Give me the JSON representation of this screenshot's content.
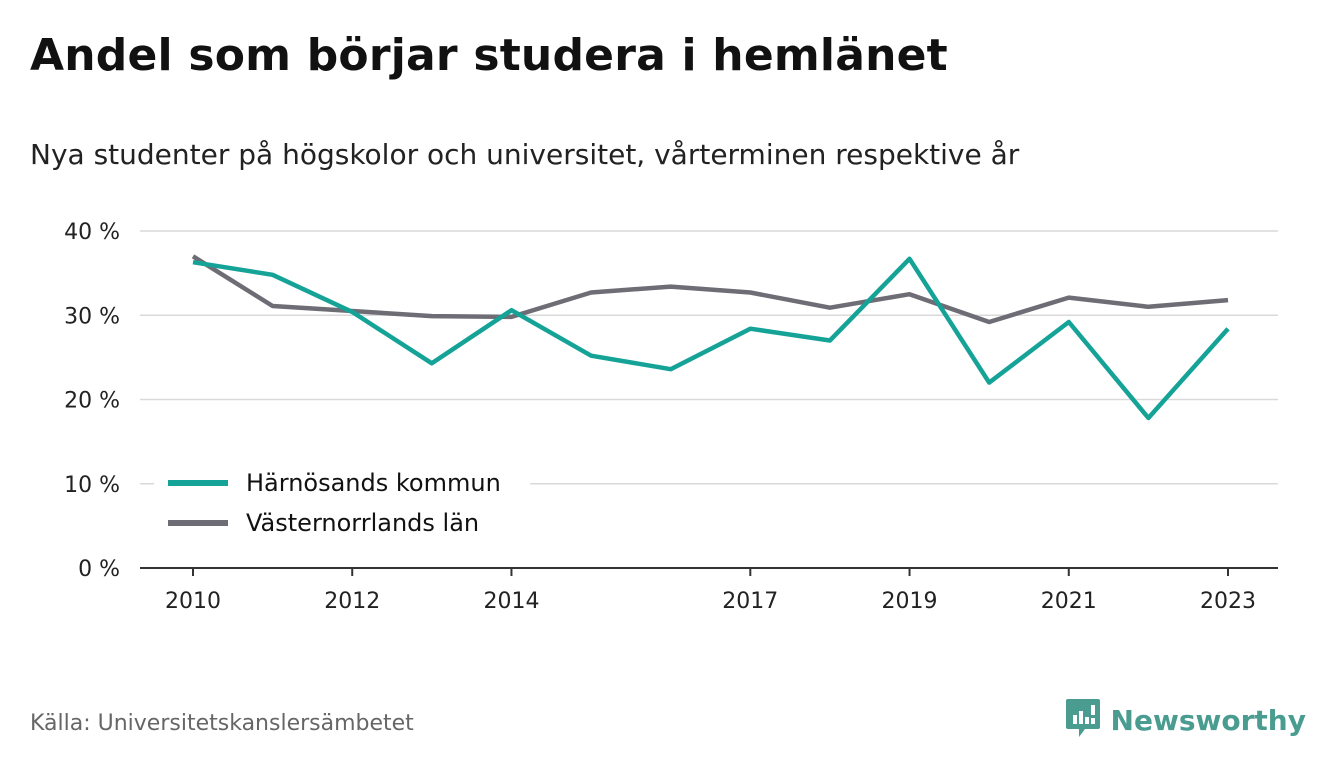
{
  "title": "Andel som börjar studera i hemlänet",
  "subtitle": "Nya studenter på högskolor och universitet, vårterminen respektive år",
  "source": "Källa: Universitetskanslersämbetet",
  "brand": {
    "name": "Newsworthy",
    "icon": "newsworthy-logo-icon",
    "color": "#4a9c90"
  },
  "chart_data": {
    "type": "line",
    "title": "",
    "x": [
      2010,
      2011,
      2012,
      2013,
      2014,
      2015,
      2016,
      2017,
      2018,
      2019,
      2020,
      2021,
      2022,
      2023
    ],
    "x_tick_values": [
      2010,
      2012,
      2014,
      2017,
      2019,
      2021,
      2023
    ],
    "x_tick_labels": [
      "2010",
      "2012",
      "2014",
      "2017",
      "2019",
      "2021",
      "2023"
    ],
    "y_tick_values": [
      0,
      10,
      20,
      30,
      40
    ],
    "y_tick_labels": [
      "0 %",
      "10 %",
      "20 %",
      "30 %",
      "40 %"
    ],
    "ylim": [
      0,
      40
    ],
    "xlim": [
      2010,
      2023
    ],
    "grid": "horizontal",
    "legend_position": "lower-left",
    "series": [
      {
        "name": "Härnösands kommun",
        "color": "#15a398",
        "values": [
          36.3,
          34.8,
          30.4,
          24.3,
          30.6,
          25.2,
          23.6,
          28.4,
          27.0,
          36.7,
          22.0,
          29.2,
          17.8,
          28.4
        ]
      },
      {
        "name": "Västernorrlands län",
        "color": "#6e6d75",
        "values": [
          37.0,
          31.1,
          30.5,
          29.9,
          29.8,
          32.7,
          33.4,
          32.7,
          30.9,
          32.5,
          29.2,
          32.1,
          31.0,
          31.8
        ]
      }
    ]
  }
}
